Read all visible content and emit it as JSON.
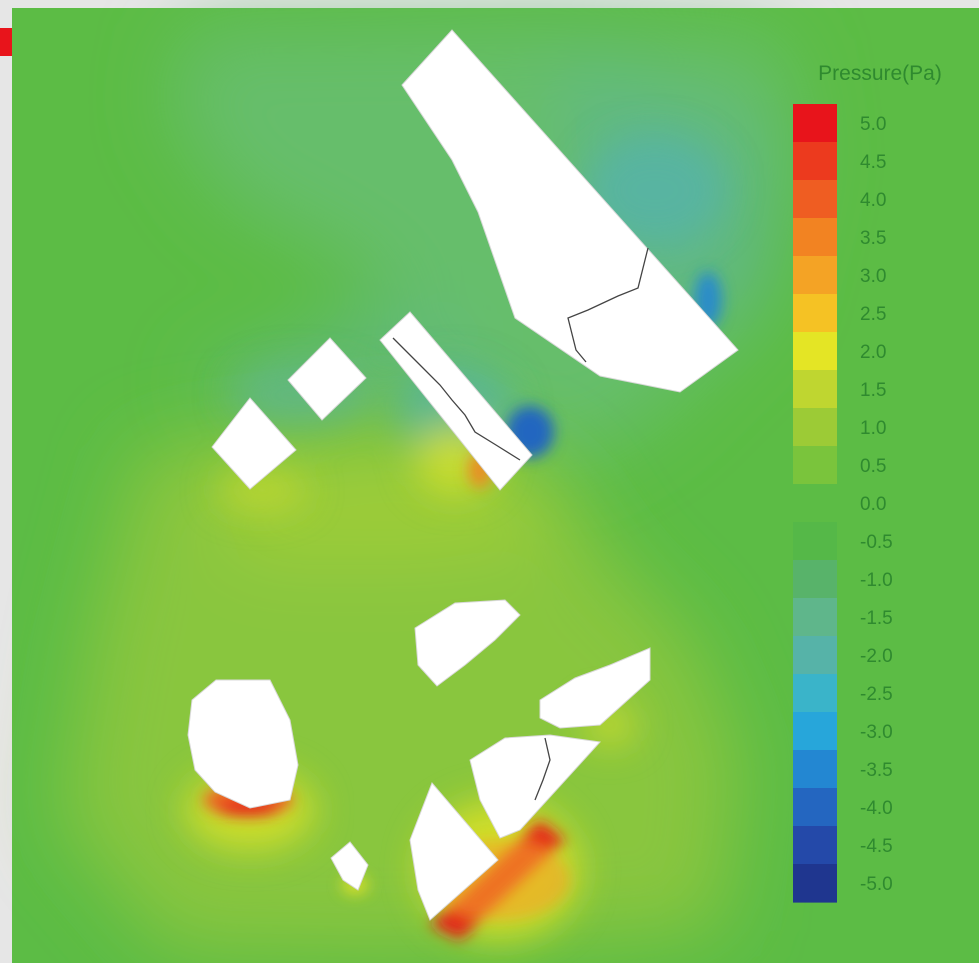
{
  "chart_data": {
    "type": "heatmap",
    "title": "",
    "colorbar": {
      "label": "Pressure(Pa)",
      "range": [
        -5.0,
        5.0
      ],
      "ticks": [
        "5.0",
        "4.5",
        "4.0",
        "3.5",
        "3.0",
        "2.5",
        "2.0",
        "1.5",
        "1.0",
        "0.5",
        "0.0",
        "-0.5",
        "-1.0",
        "-1.5",
        "-2.0",
        "-2.5",
        "-3.0",
        "-3.5",
        "-4.0",
        "-4.5",
        "-5.0"
      ],
      "placement": "right"
    },
    "background_value": 0.3,
    "regions": [
      {
        "name": "upper-low-pressure-zone",
        "value": -1.2
      },
      {
        "name": "lower-high-pressure-zone",
        "value": 1.6
      },
      {
        "name": "strong-low-pressure-spot",
        "value": -4.5
      },
      {
        "name": "secondary-low-pressure-spot",
        "value": -3.5
      },
      {
        "name": "high-pressure-spot-rock",
        "value": 5.0
      },
      {
        "name": "high-pressure-spot-slab",
        "value": 5.0
      }
    ]
  },
  "colors": {
    "background": "#5cbc45",
    "low_zone": "#6cbf6e",
    "high_zone": "#8fc73c",
    "colorbar_stops": [
      "#e8141b",
      "#ec3a1e",
      "#ef5d22",
      "#f28322",
      "#f4a325",
      "#f5c224",
      "#e4e525",
      "#bfd630",
      "#9ccb36",
      "#7ac43c",
      "#5cbc45",
      "#55b848",
      "#58b36a",
      "#5fb68b",
      "#56b3a8",
      "#3ab4c9",
      "#27a6da",
      "#2387d2",
      "#2466c0",
      "#2449a9",
      "#1f368f"
    ]
  }
}
